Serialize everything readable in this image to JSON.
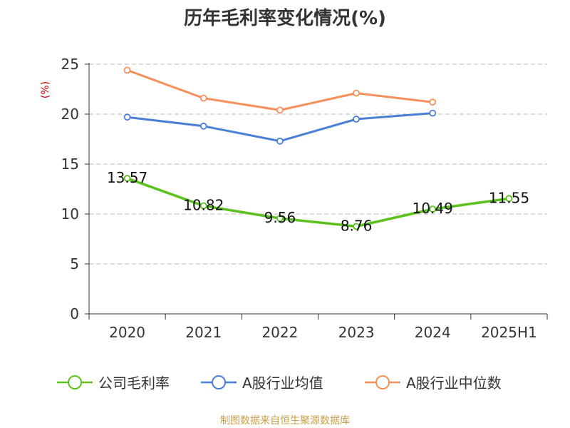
{
  "chart_data": {
    "type": "line",
    "title": "历年毛利率变化情况(%)",
    "ylabel": "(%)",
    "categories": [
      "2020",
      "2021",
      "2022",
      "2023",
      "2024",
      "2025H1"
    ],
    "ylim": [
      0,
      25
    ],
    "yticks": [
      "0",
      "5",
      "10",
      "15",
      "20",
      "25"
    ],
    "grid": true,
    "legend_position": "bottom",
    "series": [
      {
        "name": "公司毛利率",
        "color": "#5ac11d",
        "values": [
          13.57,
          10.82,
          9.56,
          8.76,
          10.49,
          11.55
        ],
        "labels": [
          "13.57",
          "10.82",
          "9.56",
          "8.76",
          "10.49",
          "11.55"
        ]
      },
      {
        "name": "A股行业均值",
        "color": "#4a7fd6",
        "values": [
          19.7,
          18.8,
          17.3,
          19.5,
          20.1,
          null
        ]
      },
      {
        "name": "A股行业中位数",
        "color": "#f5905a",
        "values": [
          24.4,
          21.6,
          20.4,
          22.1,
          21.2,
          null
        ]
      }
    ],
    "source": "制图数据来自恒生聚源数据库"
  }
}
